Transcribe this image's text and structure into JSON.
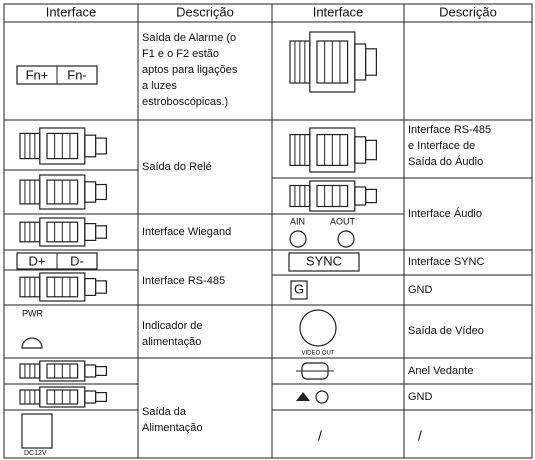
{
  "header": [
    "Interface",
    "Descrição",
    "Interface",
    "Descrição"
  ],
  "left": {
    "alarm_icon": [
      "Fn+",
      "Fn-"
    ],
    "alarm_desc": [
      "Saída de Alarme (o",
      "F1 e o F2 estão",
      "aptos para ligações",
      "a luzes",
      "estroboscópicas.)"
    ],
    "relay_desc": "Saída do Relé",
    "wiegand_desc": "Interface Wiegand",
    "rs485_icon": [
      "D+",
      "D-"
    ],
    "rs485_desc": "Interface RS-485",
    "pwr_icon": "PWR",
    "pwr_desc": [
      "Indicador de",
      "alimentação"
    ],
    "power_icon": "DC12V",
    "power_desc": [
      "Saída da",
      "Alimentação"
    ]
  },
  "right": {
    "rs485_audio_desc": [
      "Interface RS-485",
      "e Interface de",
      "Saída do Áudio"
    ],
    "audio_desc": "Interface Áudio",
    "audio_icon": [
      "AIN",
      "AOUT"
    ],
    "sync_icon": "SYNC",
    "sync_desc": "Interface SYNC",
    "gnd_icon": "G",
    "gnd_desc": "GND",
    "video_icon": "VIDEO OUT",
    "video_desc": "Saída de Vídeo",
    "seal_desc": "Anel Vedante",
    "gnd2_desc": "GND",
    "last_icon": "/",
    "last_desc": "/"
  }
}
